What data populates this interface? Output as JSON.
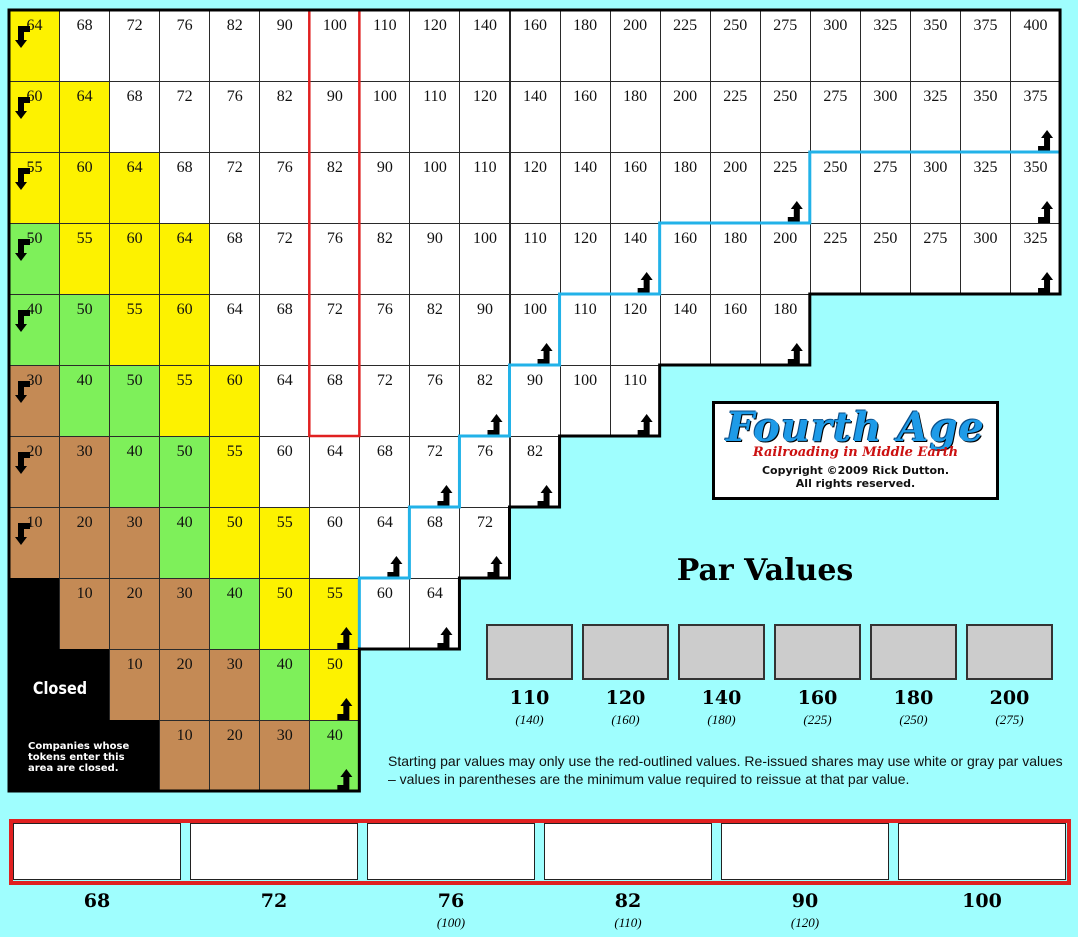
{
  "board": {
    "rows": [
      {
        "values": [
          64,
          68,
          72,
          76,
          82,
          90,
          100,
          110,
          120,
          140,
          160,
          180,
          200,
          225,
          250,
          275,
          300,
          325,
          350,
          375,
          400
        ],
        "colors": [
          "yellow",
          "white",
          "white",
          "white",
          "white",
          "white",
          "white",
          "white",
          "white",
          "white",
          "white",
          "white",
          "white",
          "white",
          "white",
          "white",
          "white",
          "white",
          "white",
          "white",
          "white"
        ]
      },
      {
        "values": [
          60,
          64,
          68,
          72,
          76,
          82,
          90,
          100,
          110,
          120,
          140,
          160,
          180,
          200,
          225,
          250,
          275,
          300,
          325,
          350,
          375
        ],
        "colors": [
          "yellow",
          "yellow",
          "white",
          "white",
          "white",
          "white",
          "white",
          "white",
          "white",
          "white",
          "white",
          "white",
          "white",
          "white",
          "white",
          "white",
          "white",
          "white",
          "white",
          "white",
          "white"
        ]
      },
      {
        "values": [
          55,
          60,
          64,
          68,
          72,
          76,
          82,
          90,
          100,
          110,
          120,
          140,
          160,
          180,
          200,
          225,
          250,
          275,
          300,
          325,
          350
        ],
        "colors": [
          "yellow",
          "yellow",
          "yellow",
          "white",
          "white",
          "white",
          "white",
          "white",
          "white",
          "white",
          "white",
          "white",
          "white",
          "white",
          "white",
          "white",
          "white",
          "white",
          "white",
          "white",
          "white"
        ]
      },
      {
        "values": [
          50,
          55,
          60,
          64,
          68,
          72,
          76,
          82,
          90,
          100,
          110,
          120,
          140,
          160,
          180,
          200,
          225,
          250,
          275,
          300,
          325
        ],
        "colors": [
          "green",
          "yellow",
          "yellow",
          "yellow",
          "white",
          "white",
          "white",
          "white",
          "white",
          "white",
          "white",
          "white",
          "white",
          "white",
          "white",
          "white",
          "white",
          "white",
          "white",
          "white",
          "white"
        ]
      },
      {
        "values": [
          40,
          50,
          55,
          60,
          64,
          68,
          72,
          76,
          82,
          90,
          100,
          110,
          120,
          140,
          160,
          180
        ],
        "colors": [
          "green",
          "green",
          "yellow",
          "yellow",
          "white",
          "white",
          "white",
          "white",
          "white",
          "white",
          "white",
          "white",
          "white",
          "white",
          "white",
          "white"
        ]
      },
      {
        "values": [
          30,
          40,
          50,
          55,
          60,
          64,
          68,
          72,
          76,
          82,
          90,
          100,
          110
        ],
        "colors": [
          "brown",
          "green",
          "green",
          "yellow",
          "yellow",
          "white",
          "white",
          "white",
          "white",
          "white",
          "white",
          "white",
          "white"
        ]
      },
      {
        "values": [
          20,
          30,
          40,
          50,
          55,
          60,
          64,
          68,
          72,
          76,
          82
        ],
        "colors": [
          "brown",
          "brown",
          "green",
          "green",
          "yellow",
          "white",
          "white",
          "white",
          "white",
          "white",
          "white"
        ]
      },
      {
        "values": [
          10,
          20,
          30,
          40,
          50,
          55,
          60,
          64,
          68,
          72
        ],
        "colors": [
          "brown",
          "brown",
          "brown",
          "green",
          "yellow",
          "yellow",
          "white",
          "white",
          "white",
          "white"
        ]
      },
      {
        "values": [
          "",
          10,
          20,
          30,
          40,
          50,
          55,
          60,
          64
        ],
        "colors": [
          "black",
          "brown",
          "brown",
          "brown",
          "green",
          "yellow",
          "yellow",
          "white",
          "white"
        ]
      },
      {
        "values": [
          "",
          "",
          10,
          20,
          30,
          40,
          50
        ],
        "colors": [
          "black",
          "black",
          "brown",
          "brown",
          "brown",
          "green",
          "yellow"
        ]
      },
      {
        "values": [
          "",
          "",
          "",
          10,
          20,
          30,
          40
        ],
        "colors": [
          "black",
          "black",
          "black",
          "brown",
          "brown",
          "brown",
          "green"
        ]
      }
    ],
    "colors": {
      "yellow": "#fdf200",
      "green": "#7ef05a",
      "brown": "#c48a55",
      "white": "#ffffff",
      "black": "#000000",
      "start_outline": "#e02020",
      "reissue_line": "#22b2e8"
    },
    "closed_label": "Closed",
    "closed_note": "Companies whose tokens enter this area are closed.",
    "icons": {
      "down": "down-left-arrow-icon",
      "up": "up-right-arrow-icon"
    }
  },
  "logo": {
    "title": "Fourth Age",
    "subtitle": "Railroading in Middle Earth",
    "copyright": "Copyright ©2009 Rick Dutton.",
    "rights": "All rights reserved."
  },
  "par_section": {
    "title": "Par Values",
    "boxes": [
      {
        "value": "110",
        "min": "(140)"
      },
      {
        "value": "120",
        "min": "(160)"
      },
      {
        "value": "140",
        "min": "(180)"
      },
      {
        "value": "160",
        "min": "(225)"
      },
      {
        "value": "180",
        "min": "(250)"
      },
      {
        "value": "200",
        "min": "(275)"
      }
    ],
    "note": "Starting par values may only use the red-outlined values.  Re-issued shares may use white or gray par values – values in parentheses are the minimum value required to reissue at that par value."
  },
  "bottom_strip": [
    {
      "value": "68",
      "min": ""
    },
    {
      "value": "72",
      "min": ""
    },
    {
      "value": "76",
      "min": "(100)"
    },
    {
      "value": "82",
      "min": "(110)"
    },
    {
      "value": "90",
      "min": "(120)"
    },
    {
      "value": "100",
      "min": ""
    }
  ]
}
